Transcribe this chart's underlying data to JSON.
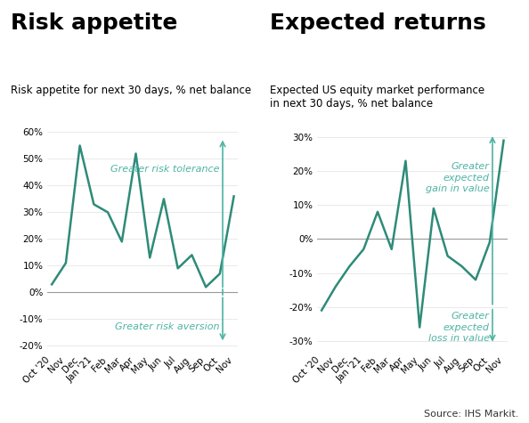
{
  "left_title": "Risk appetite",
  "left_subtitle": "Risk appetite for next 30 days, % net balance",
  "left_labels": [
    "Oct '20",
    "Nov",
    "Dec",
    "Jan '21",
    "Feb",
    "Mar",
    "Apr",
    "May",
    "Jun",
    "Jul",
    "Aug",
    "Sep",
    "Oct",
    "Nov"
  ],
  "left_values": [
    3,
    11,
    55,
    33,
    30,
    19,
    52,
    13,
    35,
    9,
    14,
    2,
    7,
    36
  ],
  "left_ylim": [
    -22,
    62
  ],
  "left_yticks": [
    -20,
    -10,
    0,
    10,
    20,
    30,
    40,
    50,
    60
  ],
  "left_arrow_top_text": "Greater risk tolerance",
  "left_arrow_bot_text": "Greater risk aversion",
  "right_title": "Expected returns",
  "right_subtitle": "Expected US equity market performance\nin next 30 days, % net balance",
  "right_labels": [
    "Oct '20",
    "Nov",
    "Dec",
    "Jan '21",
    "Feb",
    "Mar",
    "Apr",
    "May",
    "Jun",
    "Jul",
    "Aug",
    "Sep",
    "Oct",
    "Nov"
  ],
  "right_values": [
    -21,
    -14,
    -8,
    -3,
    8,
    -3,
    23,
    -26,
    9,
    -5,
    -8,
    -12,
    -1,
    29
  ],
  "right_ylim": [
    -33,
    33
  ],
  "right_yticks": [
    -30,
    -20,
    -10,
    0,
    10,
    20,
    30
  ],
  "right_arrow_top_text": "Greater\nexpected\ngain in value",
  "right_arrow_bot_text": "Greater\nexpected\nloss in value",
  "line_color": "#2e8b78",
  "arrow_color": "#4db3a4",
  "source_text": "Source: IHS Markit.",
  "bg_color": "#ffffff",
  "title_fontsize": 18,
  "subtitle_fontsize": 8.5,
  "tick_fontsize": 7.5,
  "annotation_fontsize": 8.0
}
